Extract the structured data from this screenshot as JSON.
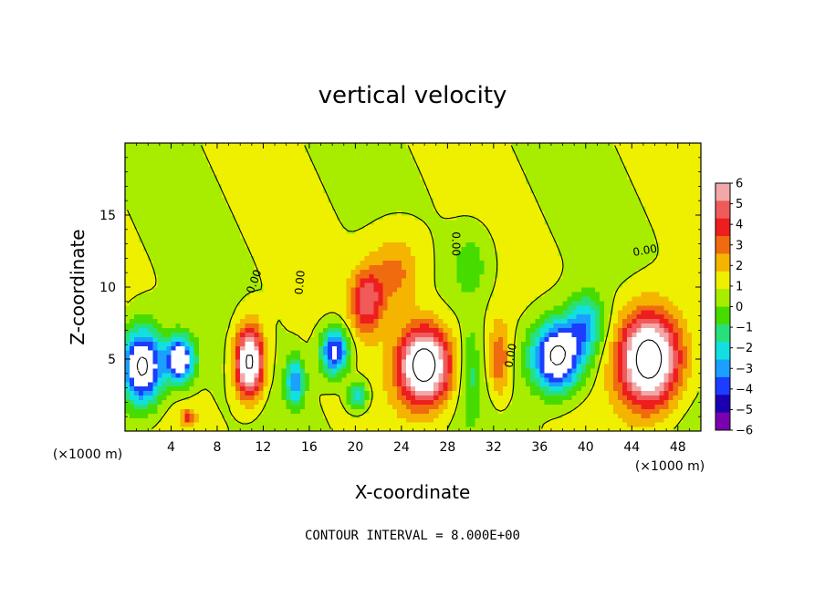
{
  "chart_data": {
    "type": "heatmap",
    "title": "vertical velocity",
    "xlabel": "X-coordinate",
    "ylabel": "Z-coordinate",
    "x_unit_label": "(×1000 m)",
    "x_ticks": [
      4,
      8,
      12,
      16,
      20,
      24,
      28,
      32,
      36,
      40,
      44,
      48
    ],
    "y_ticks": [
      5,
      10,
      15
    ],
    "xlim": [
      0,
      50
    ],
    "ylim": [
      0,
      20
    ],
    "contour_note": "CONTOUR INTERVAL = 8.000E+00",
    "contour_labels": [
      {
        "text": "0.00",
        "x": 11.5,
        "z": 10.3,
        "angle": -70
      },
      {
        "text": "0.00",
        "x": 15.5,
        "z": 10.3,
        "angle": -85
      },
      {
        "text": "0.00",
        "x": 28.4,
        "z": 13.0,
        "angle": 90
      },
      {
        "text": "0.00",
        "x": 33.8,
        "z": 5.2,
        "angle": -80
      },
      {
        "text": "0.00",
        "x": 45.2,
        "z": 12.3,
        "angle": -10
      }
    ],
    "colorbar": {
      "labels": [
        "6",
        "5",
        "4",
        "3",
        "2",
        "1",
        "0",
        "−1",
        "−2",
        "−3",
        "−4",
        "−5",
        "−6"
      ],
      "colors": [
        "#f2a8a8",
        "#f05a5a",
        "#ee1e1e",
        "#f06a10",
        "#f4b400",
        "#eef000",
        "#a8ec00",
        "#46dc00",
        "#28e07a",
        "#12e0e0",
        "#1aa0ff",
        "#1c3cff",
        "#1a00b0",
        "#7a00b0"
      ]
    },
    "features": [
      {
        "x": 1.5,
        "z": 4.5,
        "sx": 1.8,
        "sz": 2.6,
        "w": -9
      },
      {
        "x": 4.8,
        "z": 5.0,
        "sx": 1.2,
        "sz": 1.6,
        "w": -8
      },
      {
        "x": 10.8,
        "z": 4.8,
        "sx": 1.2,
        "sz": 2.4,
        "w": 9
      },
      {
        "x": 14.8,
        "z": 3.5,
        "sx": 0.8,
        "sz": 1.6,
        "w": -5
      },
      {
        "x": 18.2,
        "z": 5.5,
        "sx": 1.2,
        "sz": 1.6,
        "w": -7
      },
      {
        "x": 20.2,
        "z": 2.5,
        "sx": 0.9,
        "sz": 1.0,
        "w": -4
      },
      {
        "x": 21.0,
        "z": 9.0,
        "sx": 1.4,
        "sz": 2.2,
        "w": 4.5
      },
      {
        "x": 23.5,
        "z": 11.0,
        "sx": 2.2,
        "sz": 2.6,
        "w": 2.5
      },
      {
        "x": 26.0,
        "z": 4.6,
        "sx": 2.2,
        "sz": 2.6,
        "w": 10
      },
      {
        "x": 30.0,
        "z": 4.0,
        "sx": 0.8,
        "sz": 3.2,
        "w": -2
      },
      {
        "x": 32.5,
        "z": 5.0,
        "sx": 0.9,
        "sz": 2.6,
        "w": 3
      },
      {
        "x": 37.5,
        "z": 5.2,
        "sx": 2.2,
        "sz": 2.4,
        "w": -9
      },
      {
        "x": 40.0,
        "z": 7.5,
        "sx": 1.6,
        "sz": 2.0,
        "w": -4
      },
      {
        "x": 30.0,
        "z": 11.5,
        "sx": 1.6,
        "sz": 2.2,
        "w": -1.8
      },
      {
        "x": 45.5,
        "z": 5.0,
        "sx": 2.6,
        "sz": 3.2,
        "w": 10
      },
      {
        "x": 5.5,
        "z": 1.0,
        "sx": 0.6,
        "sz": 0.6,
        "w": 3
      }
    ]
  }
}
